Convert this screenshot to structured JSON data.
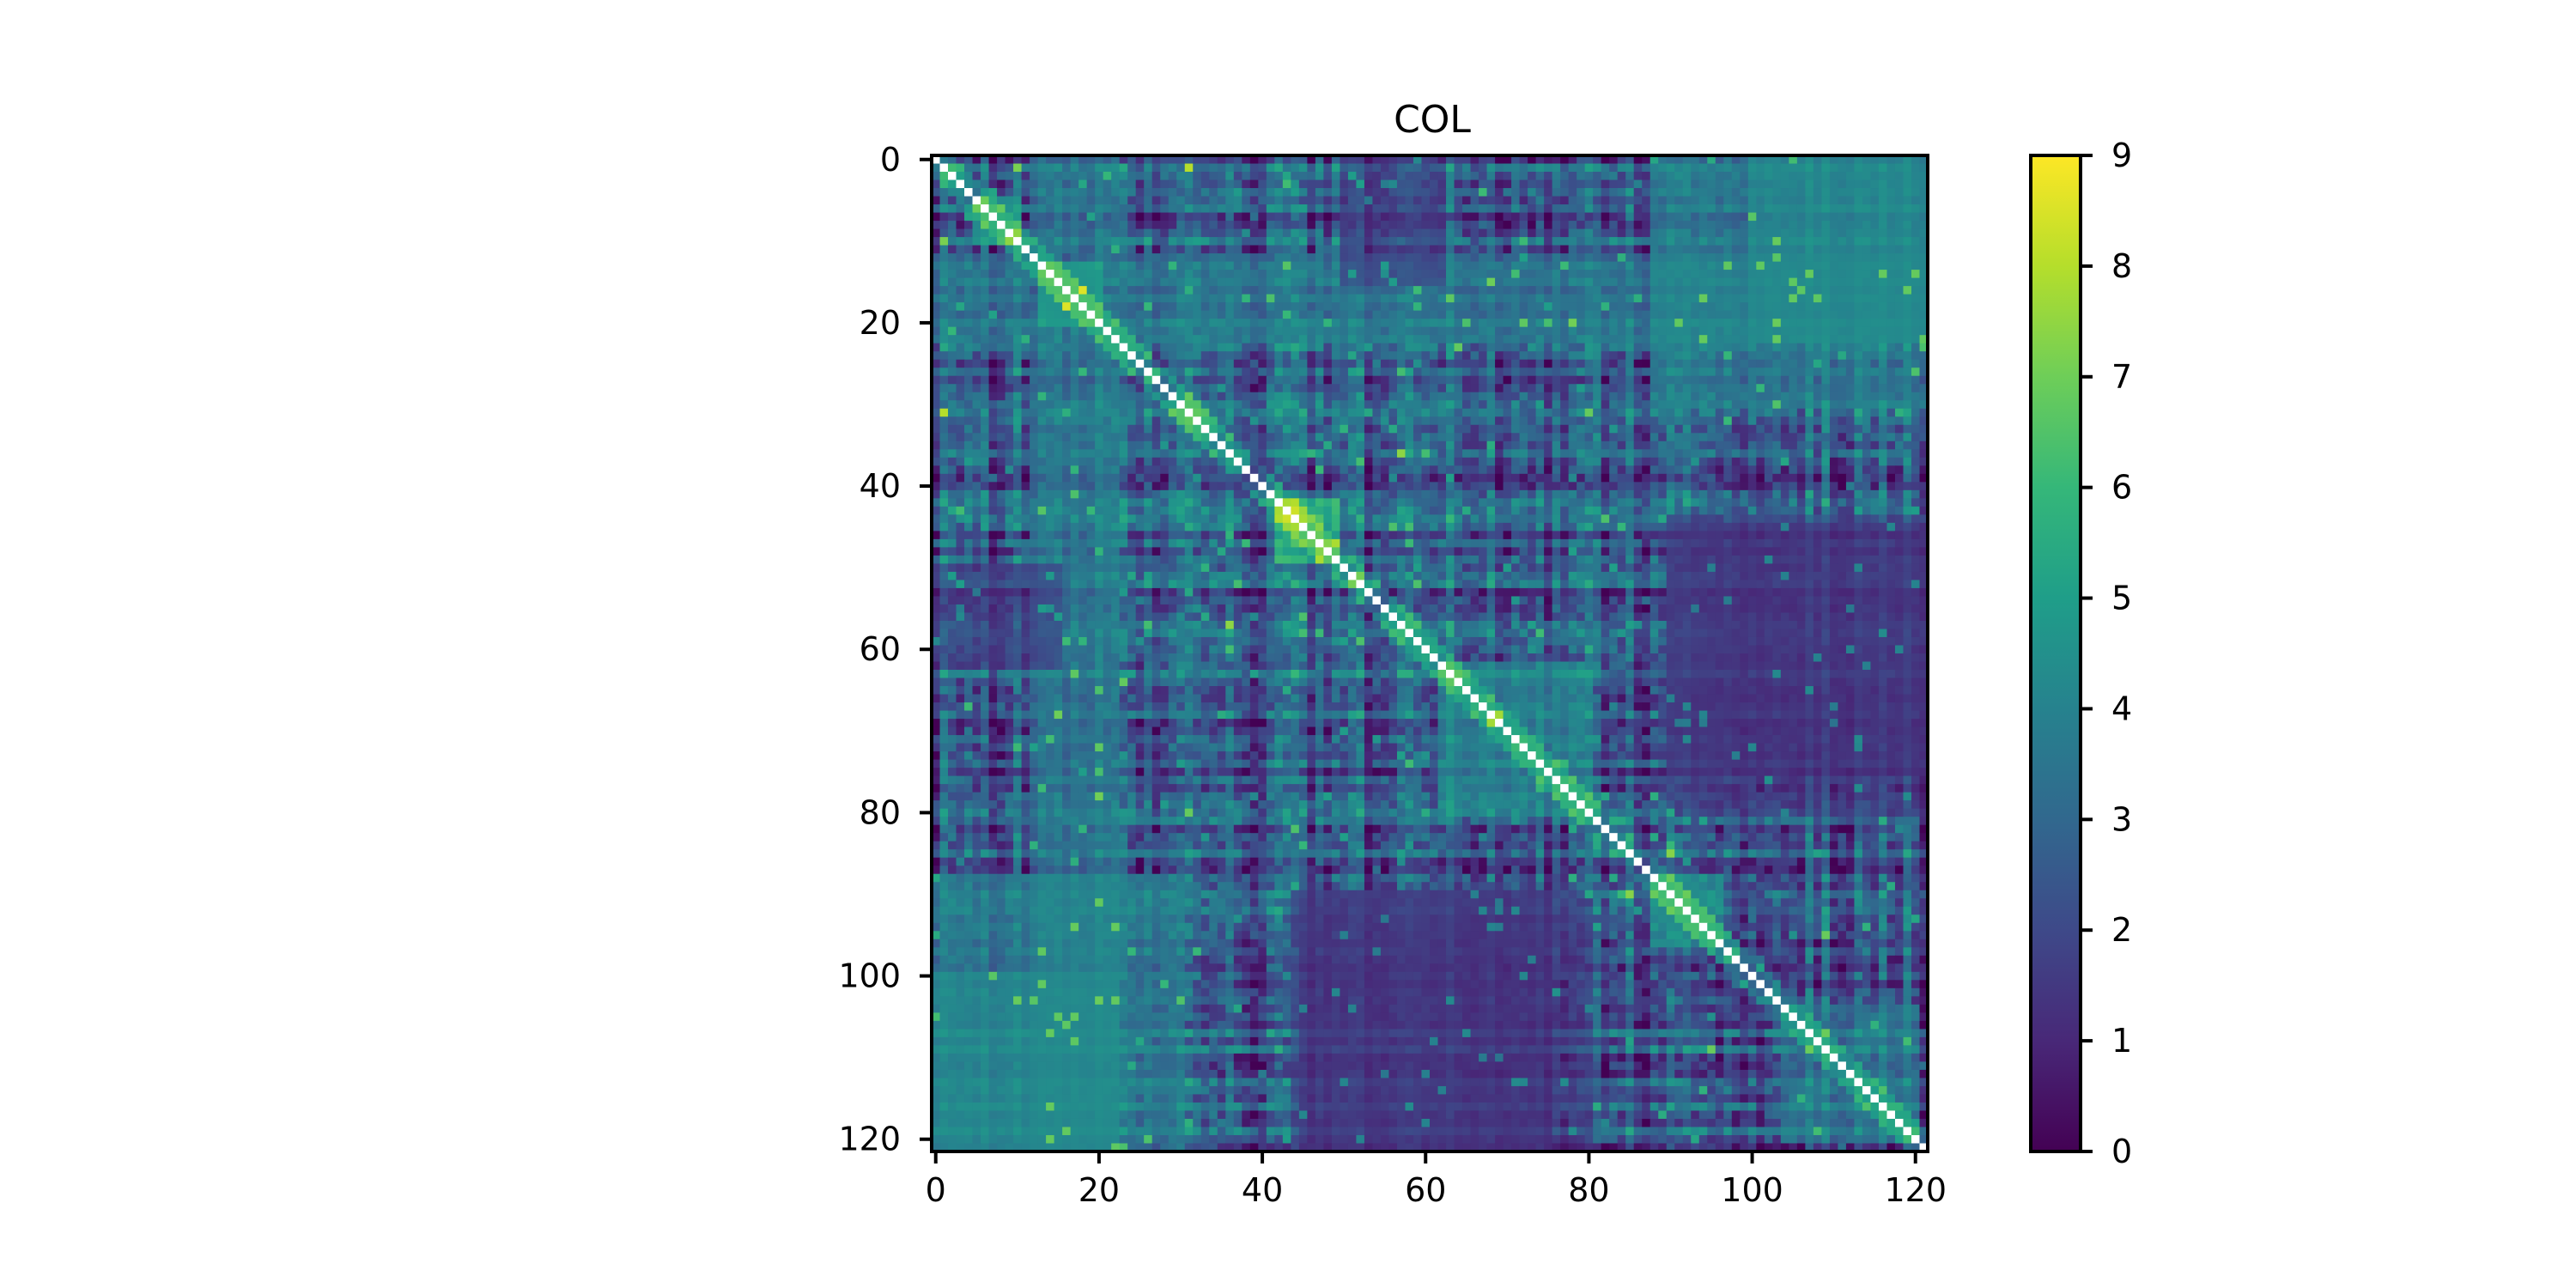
{
  "chart_data": {
    "type": "heatmap",
    "title": "COL",
    "xlabel": "",
    "ylabel": "",
    "n_rows": 122,
    "n_cols": 122,
    "x_ticks": [
      0,
      20,
      40,
      60,
      80,
      100,
      120
    ],
    "y_ticks": [
      0,
      20,
      40,
      60,
      80,
      100,
      120
    ],
    "xlim": [
      0,
      121
    ],
    "ylim": [
      121,
      0
    ],
    "colormap": "viridis",
    "colorbar": {
      "range": [
        0,
        9
      ],
      "ticks": [
        0,
        1,
        2,
        3,
        4,
        5,
        6,
        7,
        8,
        9
      ]
    },
    "symmetric": true,
    "diagonal": "blank (white)",
    "values_estimated": true,
    "block_structure": [
      {
        "rows": [
          13,
          20
        ],
        "cols": [
          13,
          20
        ],
        "level": 7.5
      },
      {
        "rows": [
          5,
          10
        ],
        "cols": [
          5,
          10
        ],
        "level": 6.5
      },
      {
        "rows": [
          42,
          49
        ],
        "cols": [
          42,
          49
        ],
        "level": 7.2
      },
      {
        "rows": [
          62,
          80
        ],
        "cols": [
          62,
          80
        ],
        "level": 5.2
      },
      {
        "rows": [
          88,
          96
        ],
        "cols": [
          88,
          96
        ],
        "level": 5.5
      },
      {
        "rows": [
          104,
          120
        ],
        "cols": [
          104,
          120
        ],
        "level": 4.5
      },
      {
        "rows": [
          0,
          22
        ],
        "cols": [
          100,
          121
        ],
        "level": 4.8
      },
      {
        "rows": [
          12,
          22
        ],
        "cols": [
          0,
          121
        ],
        "level": 4.2
      },
      {
        "rows": [
          88,
          121
        ],
        "cols": [
          0,
          30
        ],
        "level": 4.5
      },
      {
        "rows": [
          44,
          80
        ],
        "cols": [
          90,
          121
        ],
        "level": 1.0
      },
      {
        "rows": [
          90,
          121
        ],
        "cols": [
          45,
          75
        ],
        "level": 1.3
      },
      {
        "rows": [
          50,
          62
        ],
        "cols": [
          0,
          15
        ],
        "level": 1.2
      }
    ],
    "grid": false,
    "legend": "none"
  }
}
